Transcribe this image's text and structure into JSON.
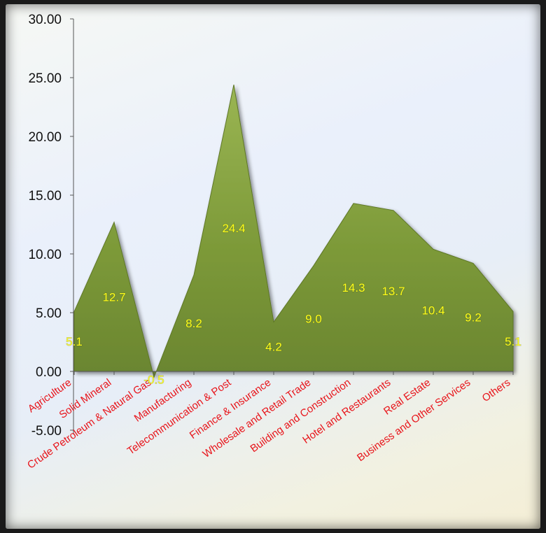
{
  "chart_data": {
    "type": "area",
    "title": "",
    "xlabel": "",
    "ylabel": "",
    "ylim": [
      -5,
      30
    ],
    "yticks": [
      "30.00",
      "25.00",
      "20.00",
      "15.00",
      "10.00",
      "5.00",
      "0.00",
      "-5.00"
    ],
    "ytick_values": [
      30,
      25,
      20,
      15,
      10,
      5,
      0,
      -5
    ],
    "grid": false,
    "legend": "none",
    "fill_color": "#7e9a3a",
    "label_color": "#ffff1a",
    "category_color": "#e8141a",
    "categories": [
      "Agriculture",
      "Solid Mineral",
      "Crude Petroleum & Natural Gas",
      "Manufacturing",
      "Telecommunication & Post",
      "Finance & Insurance",
      "Wholesale and Retail Trade",
      "Building and Construction",
      "Hotel and Restaurants",
      "Real Estate",
      "Business and Other Services",
      "Others"
    ],
    "values": [
      5.1,
      12.7,
      -0.5,
      8.2,
      24.4,
      4.2,
      9.0,
      14.3,
      13.7,
      10.4,
      9.2,
      5.1
    ],
    "data_labels": [
      "5.1",
      "12.7",
      "-0.5",
      "8.2",
      "24.4",
      "4.2",
      "9.0",
      "14.3",
      "13.7",
      "10.4",
      "9.2",
      "5.1"
    ]
  }
}
